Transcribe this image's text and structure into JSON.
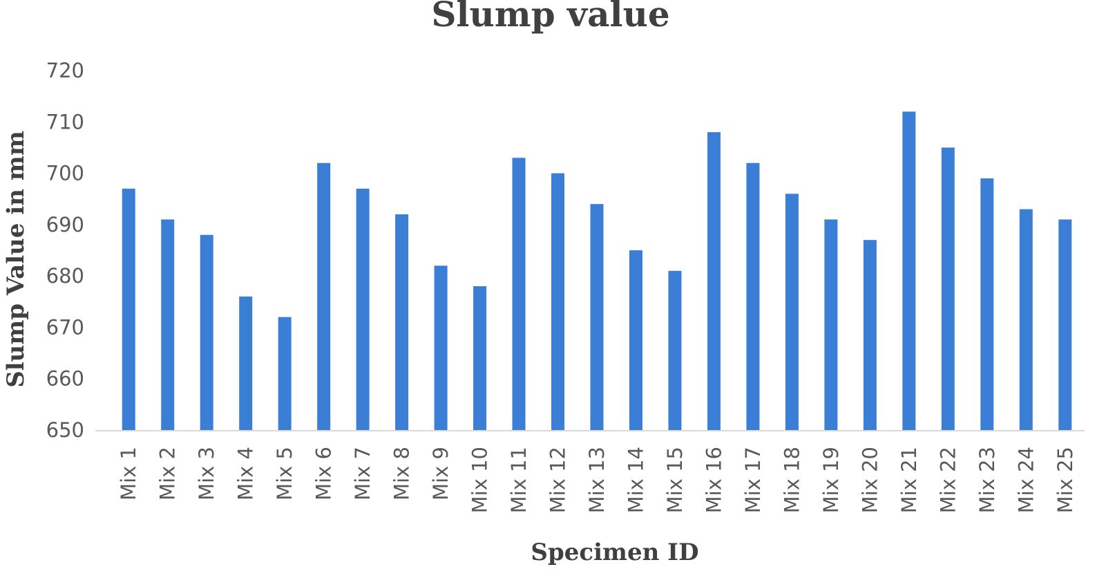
{
  "chart_data": {
    "type": "bar",
    "title": "Slump value",
    "xlabel": "Specimen ID",
    "ylabel": "Slump Value in mm",
    "ylim": [
      650,
      720
    ],
    "yticks": [
      650,
      660,
      670,
      680,
      690,
      700,
      710,
      720
    ],
    "grid": false,
    "legend": "none",
    "bar_color": "#3a7fd5",
    "categories": [
      "Mix 1",
      "Mix 2",
      "Mix 3",
      "Mix 4",
      "Mix 5",
      "Mix 6",
      "Mix 7",
      "Mix 8",
      "Mix 9",
      "Mix 10",
      "Mix 11",
      "Mix 12",
      "Mix 13",
      "Mix 14",
      "Mix 15",
      "Mix 16",
      "Mix 17",
      "Mix 18",
      "Mix 19",
      "Mix 20",
      "Mix 21",
      "Mix 22",
      "Mix 23",
      "Mix 24",
      "Mix 25"
    ],
    "values": [
      697,
      691,
      688,
      676,
      672,
      702,
      697,
      692,
      682,
      678,
      703,
      700,
      694,
      685,
      681,
      708,
      702,
      696,
      691,
      687,
      712,
      705,
      699,
      693,
      691
    ]
  }
}
